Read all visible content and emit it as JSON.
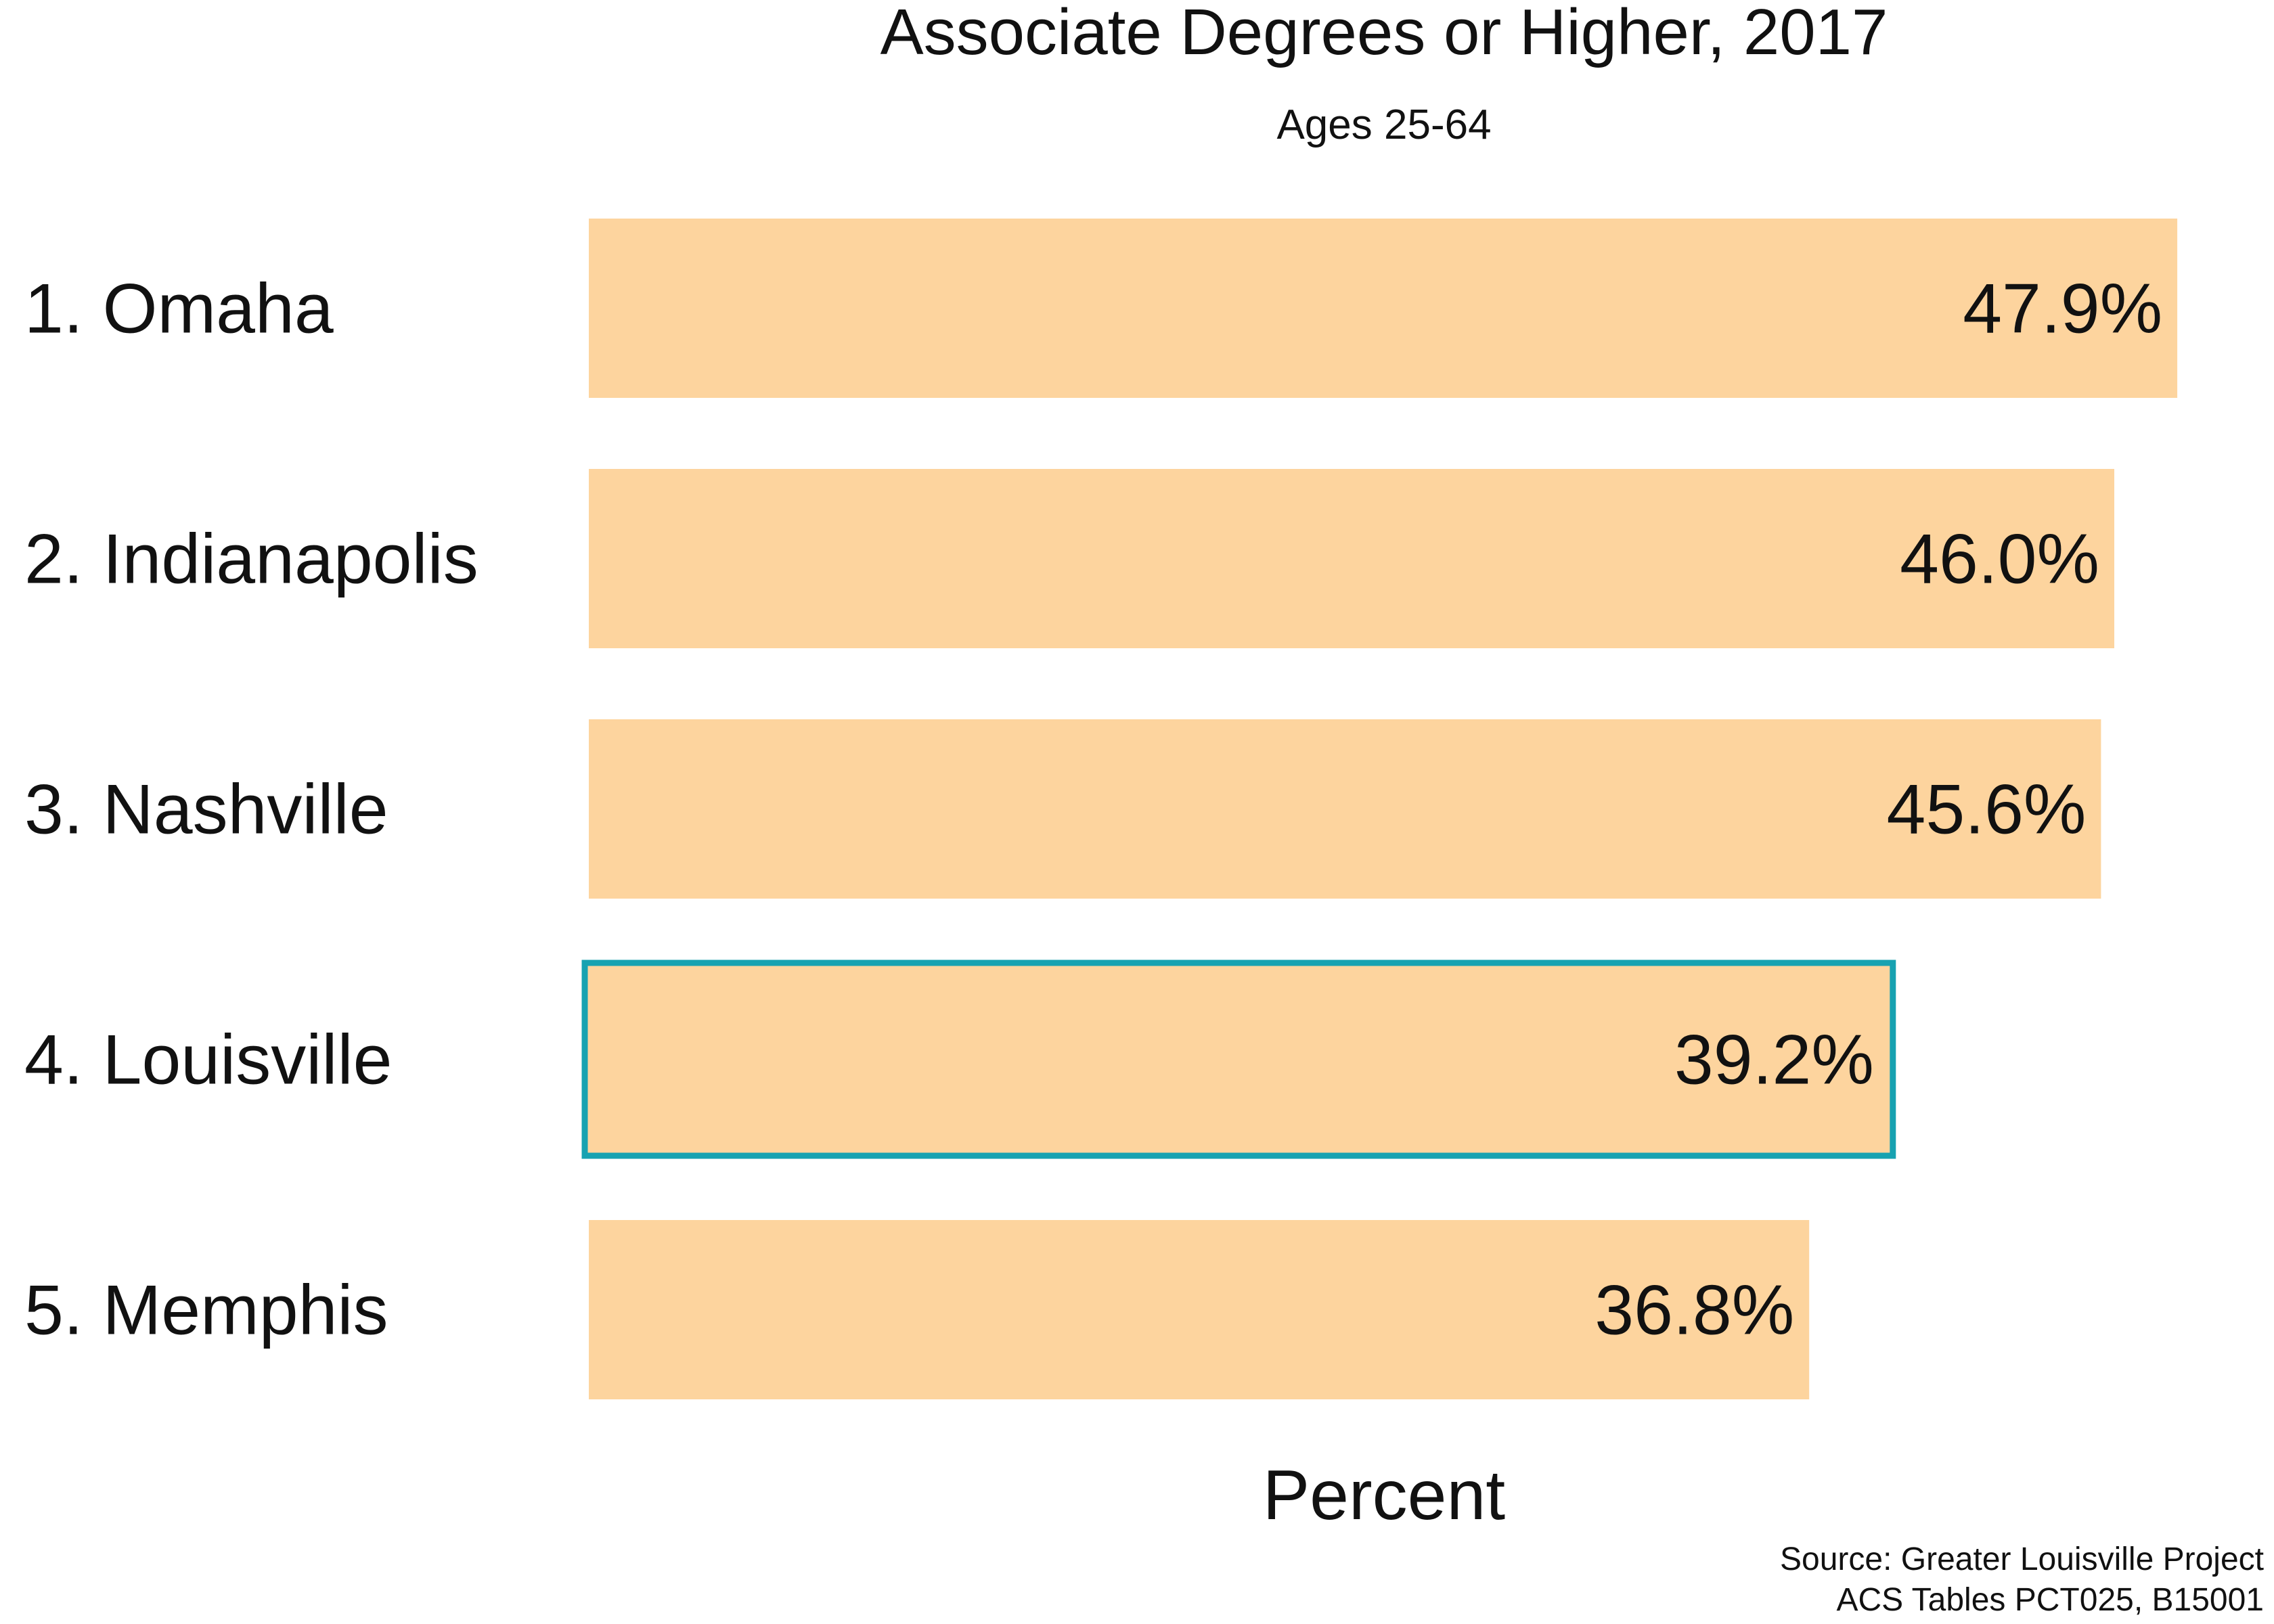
{
  "chart_data": {
    "type": "bar",
    "orientation": "horizontal",
    "title": "Associate Degrees or Higher, 2017",
    "subtitle": "Ages 25-64",
    "xlabel": "Percent",
    "ylabel": "",
    "xlim": [
      0,
      48
    ],
    "grid": false,
    "legend": "none",
    "categories": [
      "1. Omaha",
      "2. Indianapolis",
      "3. Nashville",
      "4. Louisville",
      "5. Memphis"
    ],
    "values": [
      47.9,
      46.0,
      45.6,
      39.2,
      36.8
    ],
    "value_labels": [
      "47.9%",
      "46.0%",
      "45.6%",
      "39.2%",
      "36.8%"
    ],
    "highlight_index": 3,
    "source_lines": [
      "Source: Greater Louisville Project",
      "ACS Tables PCT025, B15001"
    ],
    "colors": {
      "bar": "#fdd49e",
      "highlight_outline": "#17a2b1",
      "highlight_label": "#17a2b1",
      "text": "#111111"
    }
  }
}
